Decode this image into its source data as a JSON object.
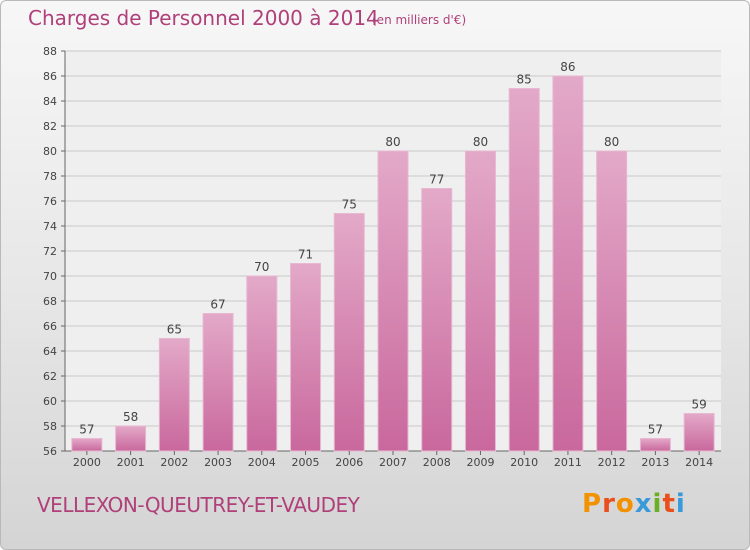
{
  "header": {
    "title": "Charges de Personnel 2000 à 2014",
    "subtitle": "(en milliers d'€)"
  },
  "footer": {
    "commune": "VELLEXON-QUEUTREY-ET-VAUDEY",
    "logo": "Proxiti"
  },
  "colors": {
    "bar": "#c9689d",
    "bar_light": "#e3a9c8",
    "title": "#b0407a"
  },
  "chart_data": {
    "type": "bar",
    "categories": [
      "2000",
      "2001",
      "2002",
      "2003",
      "2004",
      "2005",
      "2006",
      "2007",
      "2008",
      "2009",
      "2010",
      "2011",
      "2012",
      "2013",
      "2014"
    ],
    "values": [
      57,
      58,
      65,
      67,
      70,
      71,
      75,
      80,
      77,
      80,
      85,
      86,
      80,
      57,
      59
    ],
    "ylim": [
      56,
      88
    ],
    "yticks": [
      56,
      58,
      60,
      62,
      64,
      66,
      68,
      70,
      72,
      74,
      76,
      78,
      80,
      82,
      84,
      86,
      88
    ],
    "grid": true
  }
}
